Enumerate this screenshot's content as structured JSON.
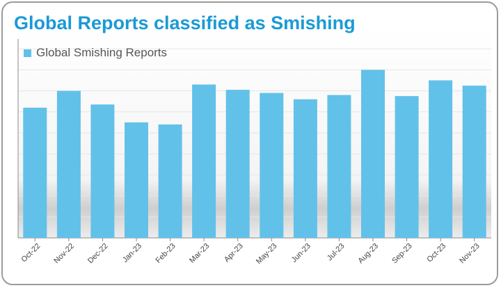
{
  "colors": {
    "title": "#1a9ad6",
    "bar": "#62c1e9",
    "axis": "#8a8a8a",
    "label": "#444444"
  },
  "chart_data": {
    "type": "bar",
    "title": "Global Reports classified as Smishing",
    "xlabel": "",
    "ylabel": "",
    "categories": [
      "Oct-22",
      "Nov-22",
      "Dec-22",
      "Jan-23",
      "Feb-23",
      "Mar-23",
      "Apr-23",
      "May-23",
      "Jun-23",
      "Jul-23",
      "Aug-23",
      "Sep-23",
      "Oct-23",
      "Nov-23"
    ],
    "series": [
      {
        "name": "Global Smishing Reports",
        "values": [
          62,
          70,
          63.5,
          55,
          54,
          73,
          70.5,
          69,
          66,
          68,
          80,
          67.5,
          75,
          72.5
        ]
      }
    ],
    "ylim": [
      0,
      100
    ],
    "y_ticks_shown": false,
    "grid": true,
    "legend_position": "top-left"
  }
}
